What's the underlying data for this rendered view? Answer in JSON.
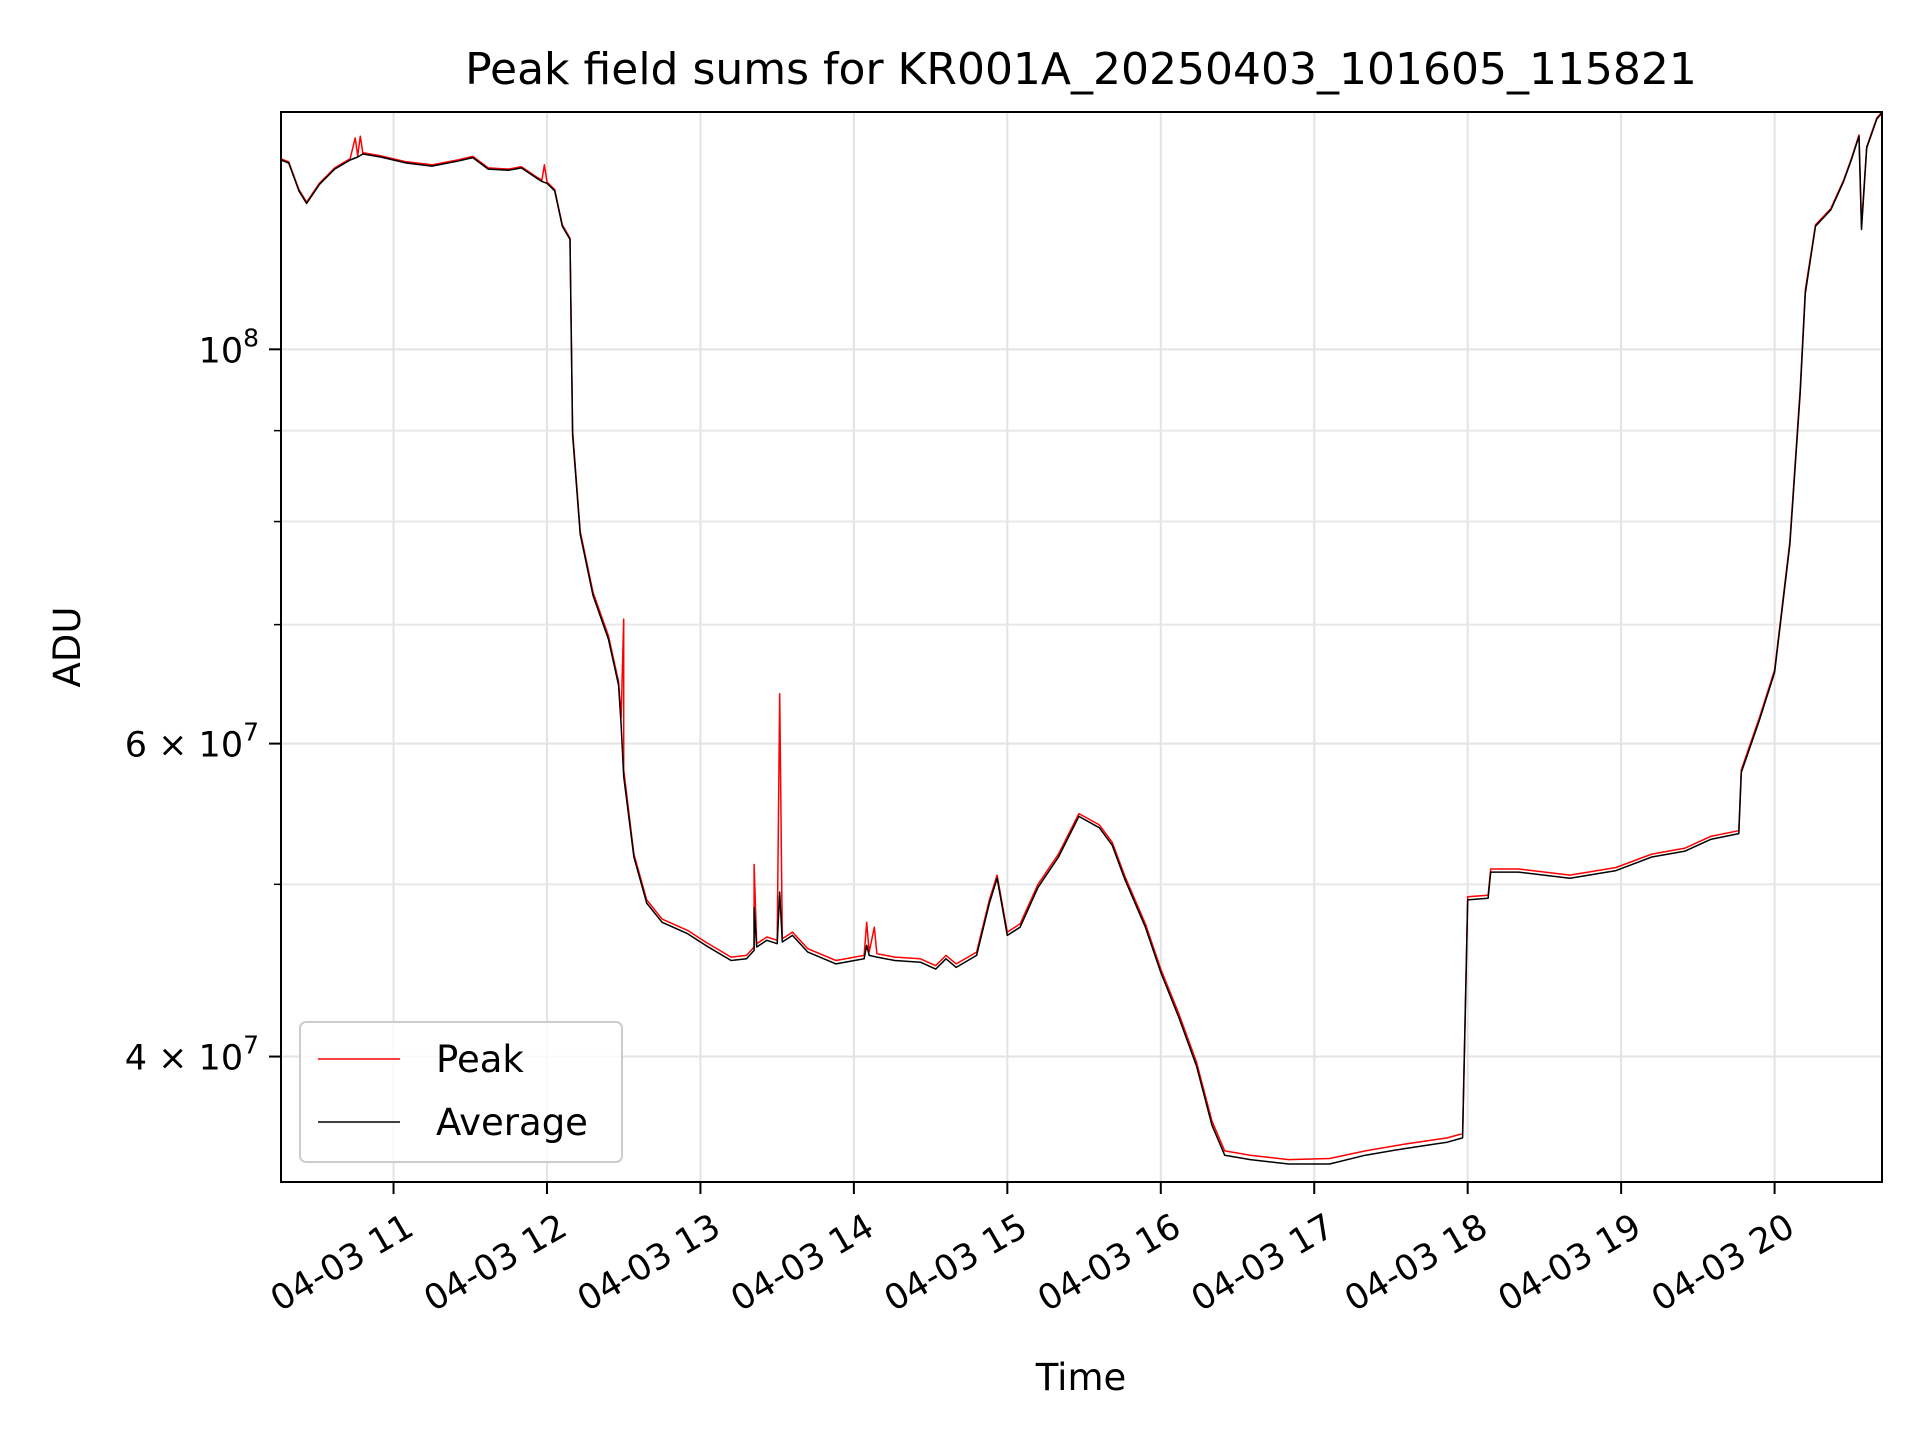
{
  "chart_data": {
    "type": "line",
    "title": "Peak field sums for KR001A_20250403_101605_115821",
    "xlabel": "Time",
    "ylabel": "ADU",
    "yscale": "log",
    "ylim": [
      34000000,
      136000000
    ],
    "xlim": [
      "04-03 10:16",
      "04-03 20:42"
    ],
    "grid": true,
    "legend_position": "lower-left",
    "x_ticks": [
      "04-03 11",
      "04-03 12",
      "04-03 13",
      "04-03 14",
      "04-03 15",
      "04-03 16",
      "04-03 17",
      "04-03 18",
      "04-03 19",
      "04-03 20"
    ],
    "y_ticks": [
      {
        "value": 100000000,
        "base": "10",
        "exp": "8",
        "mult": ""
      },
      {
        "value": 60000000,
        "base": "10",
        "exp": "7",
        "mult": "6 × "
      },
      {
        "value": 40000000,
        "base": "10",
        "exp": "7",
        "mult": "4 × "
      }
    ],
    "y_minor_ticks": [
      50000000,
      70000000,
      80000000,
      90000000
    ],
    "series": [
      {
        "name": "Peak",
        "color": "#ff0000",
        "points": [
          [
            "04-03 10:16",
            128000000
          ],
          [
            "04-03 10:19",
            127500000
          ],
          [
            "04-03 10:23",
            123000000
          ],
          [
            "04-03 10:26",
            121000000
          ],
          [
            "04-03 10:31",
            124000000
          ],
          [
            "04-03 10:37",
            126500000
          ],
          [
            "04-03 10:43",
            128000000
          ],
          [
            "04-03 10:45",
            131500000
          ],
          [
            "04-03 10:46",
            128500000
          ],
          [
            "04-03 10:47",
            131800000
          ],
          [
            "04-03 10:48",
            129000000
          ],
          [
            "04-03 10:55",
            128500000
          ],
          [
            "04-03 11:05",
            127500000
          ],
          [
            "04-03 11:15",
            127000000
          ],
          [
            "04-03 11:25",
            127800000
          ],
          [
            "04-03 11:31",
            128400000
          ],
          [
            "04-03 11:37",
            126500000
          ],
          [
            "04-03 11:45",
            126300000
          ],
          [
            "04-03 11:50",
            126700000
          ],
          [
            "04-03 11:56",
            125000000
          ],
          [
            "04-03 11:58",
            124500000
          ],
          [
            "04-03 11:59",
            127000000
          ],
          [
            "04-03 12:00",
            124200000
          ],
          [
            "04-03 12:03",
            123000000
          ],
          [
            "04-03 12:06",
            117500000
          ],
          [
            "04-03 12:09",
            115500000
          ],
          [
            "04-03 12:10",
            90000000
          ],
          [
            "04-03 12:13",
            79000000
          ],
          [
            "04-03 12:18",
            73000000
          ],
          [
            "04-03 12:24",
            69000000
          ],
          [
            "04-03 12:28",
            65000000
          ],
          [
            "04-03 12:29",
            62000000
          ],
          [
            "04-03 12:30",
            70500000
          ],
          [
            "04-03 12:30",
            58000000
          ],
          [
            "04-03 12:34",
            52000000
          ],
          [
            "04-03 12:39",
            49000000
          ],
          [
            "04-03 12:45",
            47800000
          ],
          [
            "04-03 12:55",
            47100000
          ],
          [
            "04-03 13:02",
            46400000
          ],
          [
            "04-03 13:12",
            45500000
          ],
          [
            "04-03 13:18",
            45600000
          ],
          [
            "04-03 13:21",
            46100000
          ],
          [
            "04-03 13:21",
            51300000
          ],
          [
            "04-03 13:22",
            46300000
          ],
          [
            "04-03 13:26",
            46700000
          ],
          [
            "04-03 13:30",
            46500000
          ],
          [
            "04-03 13:31",
            64000000
          ],
          [
            "04-03 13:32",
            46600000
          ],
          [
            "04-03 13:36",
            47000000
          ],
          [
            "04-03 13:42",
            46000000
          ],
          [
            "04-03 13:53",
            45300000
          ],
          [
            "04-03 14:04",
            45600000
          ],
          [
            "04-03 14:05",
            47600000
          ],
          [
            "04-03 14:06",
            45800000
          ],
          [
            "04-03 14:08",
            47300000
          ],
          [
            "04-03 14:09",
            45700000
          ],
          [
            "04-03 14:16",
            45500000
          ],
          [
            "04-03 14:26",
            45400000
          ],
          [
            "04-03 14:32",
            45000000
          ],
          [
            "04-03 14:36",
            45600000
          ],
          [
            "04-03 14:40",
            45100000
          ],
          [
            "04-03 14:48",
            45800000
          ],
          [
            "04-03 14:53",
            49000000
          ],
          [
            "04-03 14:56",
            50600000
          ],
          [
            "04-03 15:00",
            47000000
          ],
          [
            "04-03 15:05",
            47500000
          ],
          [
            "04-03 15:12",
            50000000
          ],
          [
            "04-03 15:20",
            52000000
          ],
          [
            "04-03 15:28",
            54800000
          ],
          [
            "04-03 15:36",
            54000000
          ],
          [
            "04-03 15:41",
            52800000
          ],
          [
            "04-03 15:46",
            50500000
          ],
          [
            "04-03 15:54",
            47500000
          ],
          [
            "04-03 16:00",
            44800000
          ],
          [
            "04-03 16:07",
            42300000
          ],
          [
            "04-03 16:14",
            39700000
          ],
          [
            "04-03 16:20",
            36800000
          ],
          [
            "04-03 16:25",
            35400000
          ],
          [
            "04-03 16:35",
            35200000
          ],
          [
            "04-03 16:50",
            35000000
          ],
          [
            "04-03 17:06",
            35050000
          ],
          [
            "04-03 17:20",
            35400000
          ],
          [
            "04-03 17:35",
            35700000
          ],
          [
            "04-03 17:52",
            36000000
          ],
          [
            "04-03 17:58",
            36200000
          ],
          [
            "04-03 18:00",
            49200000
          ],
          [
            "04-03 18:08",
            49300000
          ],
          [
            "04-03 18:09",
            51000000
          ],
          [
            "04-03 18:20",
            51000000
          ],
          [
            "04-03 18:40",
            50600000
          ],
          [
            "04-03 18:58",
            51100000
          ],
          [
            "04-03 19:12",
            52000000
          ],
          [
            "04-03 19:25",
            52400000
          ],
          [
            "04-03 19:35",
            53200000
          ],
          [
            "04-03 19:46",
            53600000
          ],
          [
            "04-03 19:47",
            58000000
          ],
          [
            "04-03 19:54",
            62000000
          ],
          [
            "04-03 20:00",
            66000000
          ],
          [
            "04-03 20:06",
            78000000
          ],
          [
            "04-03 20:10",
            95000000
          ],
          [
            "04-03 20:12",
            108000000
          ],
          [
            "04-03 20:16",
            117500000
          ],
          [
            "04-03 20:22",
            120000000
          ],
          [
            "04-03 20:27",
            124500000
          ],
          [
            "04-03 20:30",
            128000000
          ],
          [
            "04-03 20:33",
            132000000
          ],
          [
            "04-03 20:34",
            117500000
          ],
          [
            "04-03 20:36",
            130000000
          ],
          [
            "04-03 20:40",
            135000000
          ],
          [
            "04-03 20:42",
            136000000
          ]
        ]
      },
      {
        "name": "Average",
        "color": "#000000",
        "points": [
          [
            "04-03 10:16",
            127800000
          ],
          [
            "04-03 10:19",
            127300000
          ],
          [
            "04-03 10:23",
            122800000
          ],
          [
            "04-03 10:26",
            120800000
          ],
          [
            "04-03 10:31",
            123800000
          ],
          [
            "04-03 10:37",
            126300000
          ],
          [
            "04-03 10:43",
            127800000
          ],
          [
            "04-03 10:46",
            128300000
          ],
          [
            "04-03 10:48",
            128800000
          ],
          [
            "04-03 10:55",
            128300000
          ],
          [
            "04-03 11:05",
            127300000
          ],
          [
            "04-03 11:15",
            126800000
          ],
          [
            "04-03 11:25",
            127600000
          ],
          [
            "04-03 11:31",
            128200000
          ],
          [
            "04-03 11:37",
            126300000
          ],
          [
            "04-03 11:45",
            126100000
          ],
          [
            "04-03 11:50",
            126500000
          ],
          [
            "04-03 11:56",
            124800000
          ],
          [
            "04-03 11:58",
            124300000
          ],
          [
            "04-03 12:00",
            124000000
          ],
          [
            "04-03 12:03",
            122800000
          ],
          [
            "04-03 12:06",
            117300000
          ],
          [
            "04-03 12:09",
            115300000
          ],
          [
            "04-03 12:10",
            89500000
          ],
          [
            "04-03 12:13",
            78700000
          ],
          [
            "04-03 12:18",
            72700000
          ],
          [
            "04-03 12:24",
            68700000
          ],
          [
            "04-03 12:28",
            64700000
          ],
          [
            "04-03 12:29",
            61500000
          ],
          [
            "04-03 12:30",
            57500000
          ],
          [
            "04-03 12:34",
            51800000
          ],
          [
            "04-03 12:39",
            48800000
          ],
          [
            "04-03 12:45",
            47600000
          ],
          [
            "04-03 12:55",
            46900000
          ],
          [
            "04-03 13:02",
            46200000
          ],
          [
            "04-03 13:12",
            45300000
          ],
          [
            "04-03 13:18",
            45400000
          ],
          [
            "04-03 13:21",
            45900000
          ],
          [
            "04-03 13:21",
            48500000
          ],
          [
            "04-03 13:22",
            46100000
          ],
          [
            "04-03 13:26",
            46500000
          ],
          [
            "04-03 13:30",
            46300000
          ],
          [
            "04-03 13:31",
            49500000
          ],
          [
            "04-03 13:32",
            46400000
          ],
          [
            "04-03 13:36",
            46800000
          ],
          [
            "04-03 13:42",
            45800000
          ],
          [
            "04-03 13:53",
            45100000
          ],
          [
            "04-03 14:04",
            45400000
          ],
          [
            "04-03 14:05",
            46200000
          ],
          [
            "04-03 14:06",
            45600000
          ],
          [
            "04-03 14:09",
            45500000
          ],
          [
            "04-03 14:16",
            45300000
          ],
          [
            "04-03 14:26",
            45200000
          ],
          [
            "04-03 14:32",
            44800000
          ],
          [
            "04-03 14:36",
            45400000
          ],
          [
            "04-03 14:40",
            44900000
          ],
          [
            "04-03 14:48",
            45600000
          ],
          [
            "04-03 14:53",
            48800000
          ],
          [
            "04-03 14:56",
            50400000
          ],
          [
            "04-03 15:00",
            46800000
          ],
          [
            "04-03 15:05",
            47300000
          ],
          [
            "04-03 15:12",
            49800000
          ],
          [
            "04-03 15:20",
            51800000
          ],
          [
            "04-03 15:28",
            54600000
          ],
          [
            "04-03 15:36",
            53800000
          ],
          [
            "04-03 15:41",
            52600000
          ],
          [
            "04-03 15:46",
            50300000
          ],
          [
            "04-03 15:54",
            47300000
          ],
          [
            "04-03 16:00",
            44600000
          ],
          [
            "04-03 16:07",
            42100000
          ],
          [
            "04-03 16:14",
            39500000
          ],
          [
            "04-03 16:20",
            36600000
          ],
          [
            "04-03 16:25",
            35200000
          ],
          [
            "04-03 16:35",
            35000000
          ],
          [
            "04-03 16:50",
            34800000
          ],
          [
            "04-03 17:06",
            34800000
          ],
          [
            "04-03 17:20",
            35200000
          ],
          [
            "04-03 17:35",
            35500000
          ],
          [
            "04-03 17:52",
            35800000
          ],
          [
            "04-03 17:58",
            36000000
          ],
          [
            "04-03 18:00",
            49000000
          ],
          [
            "04-03 18:08",
            49100000
          ],
          [
            "04-03 18:09",
            50800000
          ],
          [
            "04-03 18:20",
            50800000
          ],
          [
            "04-03 18:40",
            50400000
          ],
          [
            "04-03 18:58",
            50900000
          ],
          [
            "04-03 19:12",
            51800000
          ],
          [
            "04-03 19:25",
            52200000
          ],
          [
            "04-03 19:35",
            53000000
          ],
          [
            "04-03 19:46",
            53400000
          ],
          [
            "04-03 19:47",
            57800000
          ],
          [
            "04-03 19:54",
            61800000
          ],
          [
            "04-03 20:00",
            65800000
          ],
          [
            "04-03 20:06",
            77700000
          ],
          [
            "04-03 20:10",
            94500000
          ],
          [
            "04-03 20:12",
            107500000
          ],
          [
            "04-03 20:16",
            117300000
          ],
          [
            "04-03 20:22",
            119800000
          ],
          [
            "04-03 20:27",
            124300000
          ],
          [
            "04-03 20:30",
            127800000
          ],
          [
            "04-03 20:33",
            131800000
          ],
          [
            "04-03 20:34",
            116800000
          ],
          [
            "04-03 20:36",
            129800000
          ],
          [
            "04-03 20:40",
            134800000
          ],
          [
            "04-03 20:42",
            135800000
          ]
        ]
      }
    ]
  }
}
